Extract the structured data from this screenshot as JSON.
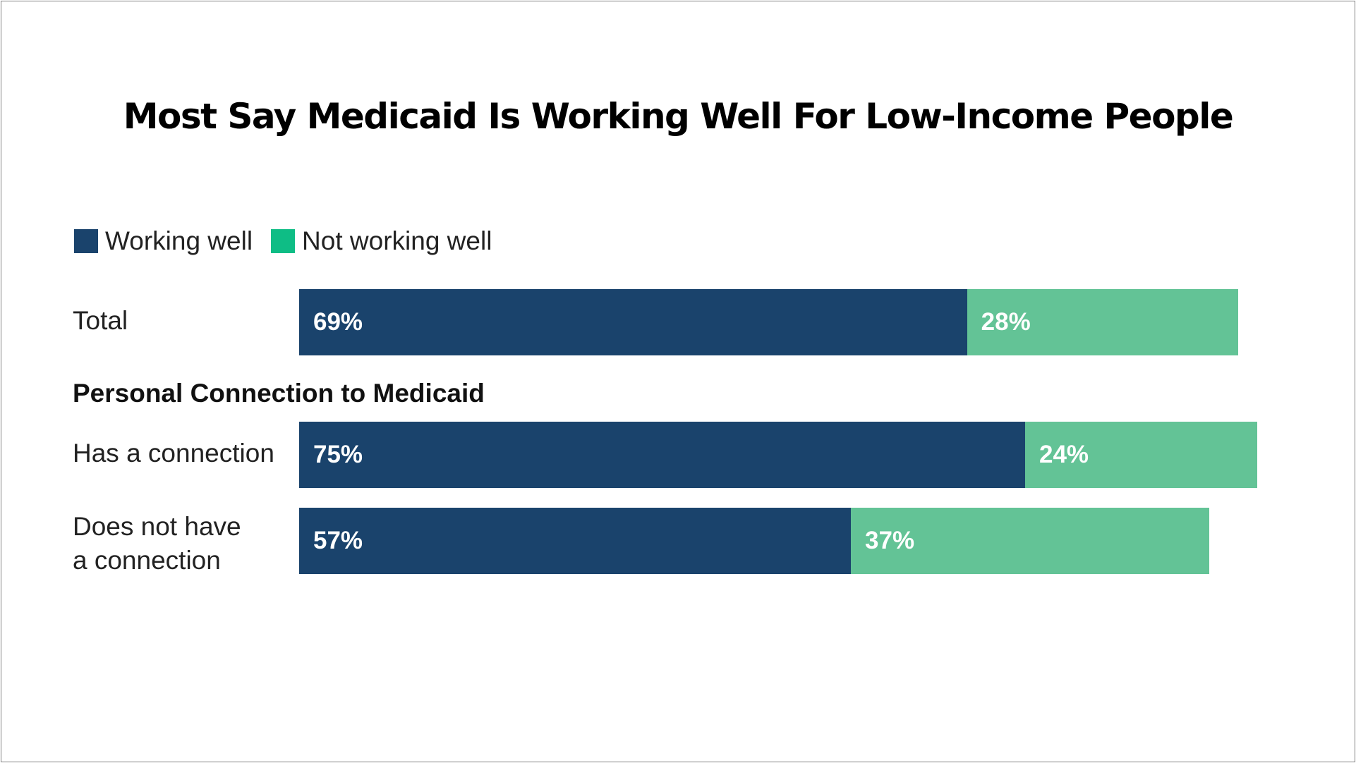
{
  "chart_data": {
    "type": "bar",
    "orientation": "horizontal",
    "stacked": true,
    "title": "Most Say Medicaid Is Working Well For Low-Income People",
    "section_heading": "Personal Connection to Medicaid",
    "legend_position": "top-left",
    "categories": [
      "Total",
      "Has a connection",
      "Does not have a connection"
    ],
    "category_lines": [
      [
        "Total"
      ],
      [
        "Has a connection"
      ],
      [
        "Does not have",
        "a connection"
      ]
    ],
    "series": [
      {
        "name": "Working well",
        "values": [
          69,
          75,
          57
        ],
        "labels": [
          "69%",
          "75%",
          "57%"
        ],
        "color": "#1a436c"
      },
      {
        "name": "Not working well",
        "values": [
          28,
          24,
          37
        ],
        "labels": [
          "28%",
          "24%",
          "37%"
        ],
        "color": "#63c396"
      }
    ],
    "legend_colors": [
      "#1a436c",
      "#0ebd85"
    ],
    "xlim": [
      0,
      100
    ],
    "grid": false
  }
}
